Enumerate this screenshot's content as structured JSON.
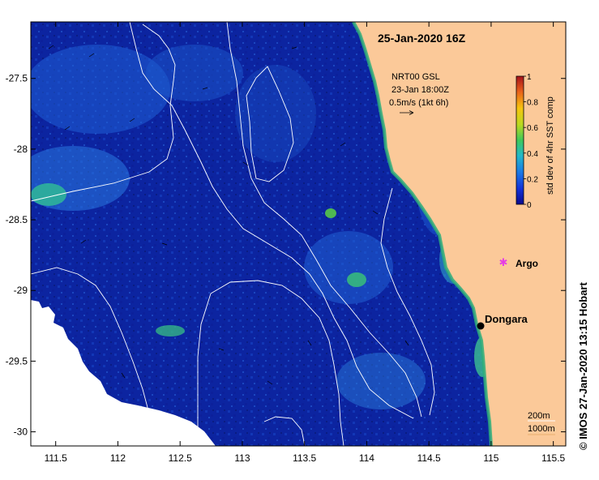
{
  "map": {
    "title": "25-Jan-2020 16Z",
    "credit": "© IMOS 27-Jan-2020 13:15 Hobart",
    "current_info": {
      "line1": "NRT00 GSL",
      "line2": "23-Jan 18:00Z",
      "line3": "0.5m/s (1kt 6h)"
    },
    "x_ticks": [
      "111.5",
      "112",
      "112.5",
      "113",
      "113.5",
      "114",
      "114.5",
      "115",
      "115.5"
    ],
    "x_tick_values": [
      111.5,
      112,
      112.5,
      113,
      113.5,
      114,
      114.5,
      115,
      115.5
    ],
    "y_ticks": [
      "-27.5",
      "-28",
      "-28.5",
      "-29",
      "-29.5",
      "-30"
    ],
    "y_tick_values": [
      -27.5,
      -28,
      -28.5,
      -29,
      -29.5,
      -30
    ],
    "lon_range": [
      111.3,
      115.6
    ],
    "lat_range": [
      -30.1,
      -27.1
    ],
    "places": [
      {
        "name": "Dongara",
        "lon": 114.93,
        "lat": -29.25,
        "marker": "black-dot"
      },
      {
        "name": "Argo",
        "lon": 115.12,
        "lat": -28.8,
        "marker": "magenta-star"
      }
    ],
    "depth_contours": [
      "200m",
      "1000m"
    ],
    "colorbar": {
      "label": "std dev of 4hr SST comp",
      "ticks": [
        "0",
        "0.2",
        "0.4",
        "0.6",
        "0.8",
        "1"
      ],
      "range": [
        0,
        1
      ]
    },
    "colors": {
      "land": "#fbc999",
      "ocean_dark": "#0a1e8c",
      "cloud": "#ffffff",
      "argo": "#e53ee5"
    }
  }
}
